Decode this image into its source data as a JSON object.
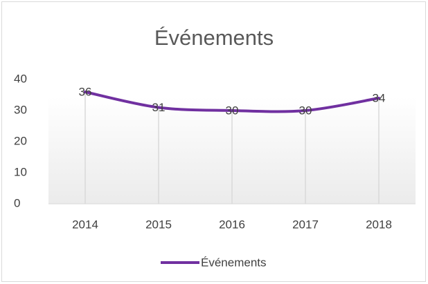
{
  "chart_data": {
    "type": "line",
    "title": "Événements",
    "categories": [
      "2014",
      "2015",
      "2016",
      "2017",
      "2018"
    ],
    "series": [
      {
        "name": "Événements",
        "color": "#7030a0",
        "values": [
          36,
          31,
          30,
          30,
          34
        ]
      }
    ],
    "ylim": [
      0,
      40
    ],
    "yticks": [
      0,
      10,
      20,
      30,
      40
    ],
    "drop_lines": true,
    "smooth": true,
    "legend": "bottom",
    "data_labels": true
  }
}
